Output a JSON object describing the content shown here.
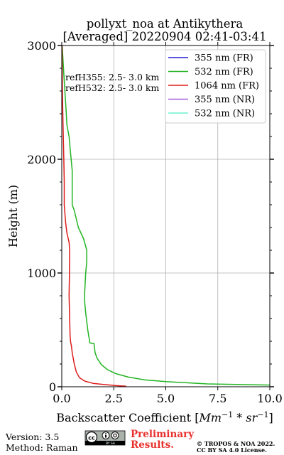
{
  "chart_data": {
    "type": "line",
    "title_line1": "pollyxt_noa at Antikythera",
    "title_line2": "[Averaged] 20220904 02:41-03:41",
    "xlabel_text": "Backscatter Coefficient [",
    "xlabel_math": "Mm",
    "xlabel_sup1": "−1",
    "xlabel_mid": " * ",
    "xlabel_math2": "sr",
    "xlabel_sup2": "−1",
    "xlabel_end": "]",
    "ylabel": "Height (m)",
    "xlim": [
      0,
      10
    ],
    "ylim": [
      0,
      3000
    ],
    "xticks": [
      0,
      2.5,
      5,
      7.5,
      10
    ],
    "xtick_labels": [
      "0.0",
      "2.5",
      "5.0",
      "7.5",
      "10.0"
    ],
    "yticks": [
      0,
      1000,
      2000,
      3000
    ],
    "ytick_labels": [
      "0",
      "1000",
      "2000",
      "3000"
    ],
    "grid": true,
    "legend_position": "top-right",
    "annotations": [
      "refH355:  2.5- 3.0 km",
      "refH532:  2.5- 3.0 km"
    ],
    "series": [
      {
        "name": "355 nm (FR)",
        "color": "#1f1fd6",
        "points": []
      },
      {
        "name": "532 nm (FR)",
        "color": "#22b422",
        "points": [
          [
            10.0,
            15
          ],
          [
            7.0,
            25
          ],
          [
            5.0,
            45
          ],
          [
            4.0,
            60
          ],
          [
            3.2,
            85
          ],
          [
            2.6,
            115
          ],
          [
            2.2,
            150
          ],
          [
            1.9,
            195
          ],
          [
            1.7,
            250
          ],
          [
            1.6,
            300
          ],
          [
            1.55,
            380
          ],
          [
            1.35,
            385
          ],
          [
            1.25,
            500
          ],
          [
            1.15,
            650
          ],
          [
            1.1,
            750
          ],
          [
            1.1,
            820
          ],
          [
            1.15,
            1000
          ],
          [
            1.2,
            1100
          ],
          [
            1.2,
            1200
          ],
          [
            1.05,
            1300
          ],
          [
            0.8,
            1400
          ],
          [
            0.6,
            1550
          ],
          [
            0.5,
            1600
          ],
          [
            0.5,
            1900
          ],
          [
            0.45,
            2000
          ],
          [
            0.4,
            2100
          ],
          [
            0.35,
            2200
          ],
          [
            0.25,
            2300
          ],
          [
            0.2,
            2450
          ],
          [
            0.15,
            2600
          ],
          [
            0.1,
            2750
          ],
          [
            0.05,
            2900
          ],
          [
            0.02,
            3000
          ]
        ]
      },
      {
        "name": "1064 nm (FR)",
        "color": "#dd1c1c",
        "points": [
          [
            3.1,
            5
          ],
          [
            2.6,
            10
          ],
          [
            2.0,
            20
          ],
          [
            1.5,
            30
          ],
          [
            1.1,
            50
          ],
          [
            0.85,
            80
          ],
          [
            0.7,
            130
          ],
          [
            0.6,
            200
          ],
          [
            0.5,
            300
          ],
          [
            0.47,
            350
          ],
          [
            0.42,
            400
          ],
          [
            0.4,
            450
          ],
          [
            0.38,
            600
          ],
          [
            0.35,
            800
          ],
          [
            0.37,
            1000
          ],
          [
            0.38,
            1200
          ],
          [
            0.35,
            1270
          ],
          [
            0.25,
            1350
          ],
          [
            0.18,
            1450
          ],
          [
            0.12,
            1600
          ],
          [
            0.12,
            1800
          ],
          [
            0.1,
            2000
          ],
          [
            0.06,
            2300
          ],
          [
            0.03,
            2600
          ],
          [
            0.01,
            3000
          ]
        ]
      },
      {
        "name": "355 nm (NR)",
        "color": "#a75fd8",
        "points": []
      },
      {
        "name": "532 nm (NR)",
        "color": "#6df2cf",
        "points": []
      }
    ]
  },
  "footer": {
    "version": "Version: 3.5",
    "method": "Method: Raman",
    "preliminary_line1": "Preliminary",
    "preliminary_line2": "Results.",
    "copyright_line1": "© TROPOS & NOA 2022.",
    "copyright_line2": "CC BY SA 4.0 License."
  },
  "license_badge": {
    "icon": "cc-by-sa-icon",
    "text": "BY SA"
  }
}
